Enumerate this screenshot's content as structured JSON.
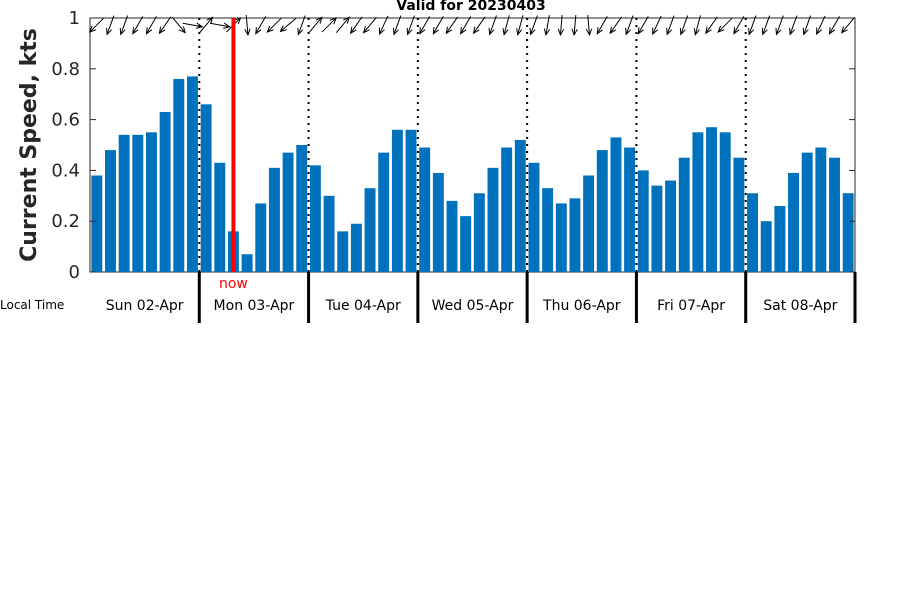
{
  "chart_data": {
    "type": "bar",
    "title": "Valid for 20230403",
    "ylabel": "Current Speed, kts",
    "xlabel": "Local Time",
    "ylim": [
      0,
      1
    ],
    "yticks": [
      "0",
      "0.2",
      "0.4",
      "0.6",
      "0.8",
      "1"
    ],
    "bar_color": "#0072BD",
    "now_color": "#FF0000",
    "now_label": "now",
    "now_position": 10.5,
    "days": [
      "Sun 02-Apr",
      "Mon 03-Apr",
      "Tue 04-Apr",
      "Wed 05-Apr",
      "Thu 06-Apr",
      "Fri 07-Apr",
      "Sat 08-Apr"
    ],
    "bars_per_day": 8,
    "values": [
      0.38,
      0.48,
      0.54,
      0.54,
      0.55,
      0.63,
      0.76,
      0.77,
      0.66,
      0.43,
      0.16,
      0.07,
      0.27,
      0.41,
      0.47,
      0.5,
      0.42,
      0.3,
      0.16,
      0.19,
      0.33,
      0.47,
      0.56,
      0.56,
      0.49,
      0.39,
      0.28,
      0.22,
      0.31,
      0.41,
      0.49,
      0.52,
      0.43,
      0.33,
      0.27,
      0.29,
      0.38,
      0.48,
      0.53,
      0.49,
      0.4,
      0.34,
      0.36,
      0.45,
      0.55,
      0.57,
      0.55,
      0.45,
      0.31,
      0.2,
      0.26,
      0.39,
      0.47,
      0.49,
      0.45,
      0.31
    ],
    "direction_deg": [
      225,
      200,
      200,
      210,
      210,
      215,
      140,
      100,
      40,
      100,
      45,
      175,
      210,
      225,
      230,
      200,
      40,
      45,
      40,
      215,
      220,
      205,
      200,
      200,
      210,
      210,
      215,
      210,
      215,
      200,
      195,
      195,
      200,
      190,
      185,
      185,
      175,
      210,
      215,
      200,
      210,
      205,
      200,
      200,
      195,
      215,
      225,
      210,
      200,
      200,
      200,
      200,
      200,
      205,
      210,
      220
    ]
  }
}
